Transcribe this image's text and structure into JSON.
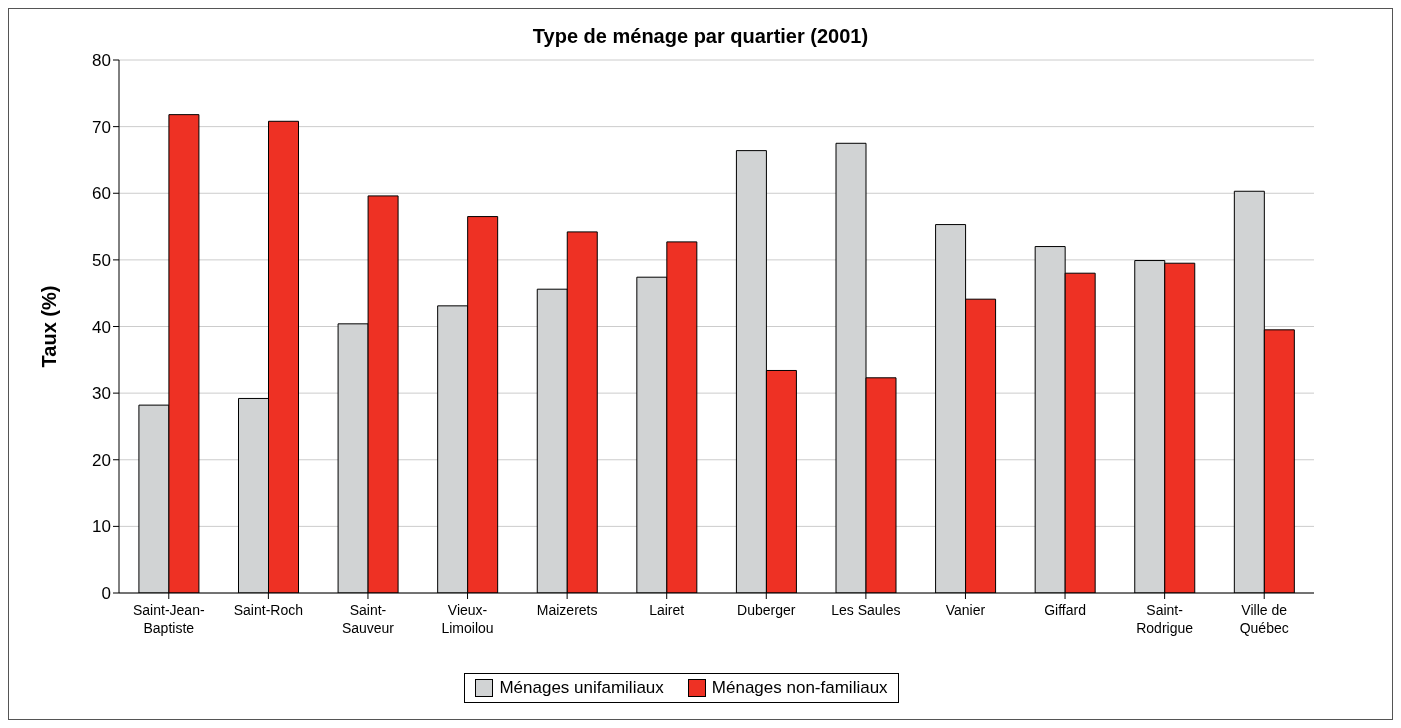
{
  "chart_data": {
    "type": "bar",
    "title": "Type de ménage par quartier (2001)",
    "ylabel": "Taux (%)",
    "categories": [
      "Saint-Jean-Baptiste",
      "Saint-Roch",
      "Saint-Sauveur",
      "Vieux-Limoilou",
      "Maizerets",
      "Lairet",
      "Duberger",
      "Les Saules",
      "Vanier",
      "Giffard",
      "Saint-Rodrigue",
      "Ville de Québec"
    ],
    "series": [
      {
        "name": "Ménages unifamiliaux",
        "color": "#d1d3d4",
        "values": [
          28.2,
          29.2,
          40.4,
          43.1,
          45.6,
          47.4,
          66.4,
          67.5,
          55.3,
          52.0,
          49.9,
          60.3
        ]
      },
      {
        "name": "Ménages non-familiaux",
        "color": "#ee3124",
        "values": [
          71.8,
          70.8,
          59.6,
          56.5,
          54.2,
          52.7,
          33.4,
          32.3,
          44.1,
          48.0,
          49.5,
          39.5
        ]
      }
    ],
    "ylim": [
      0,
      80
    ],
    "yticks": [
      0,
      10,
      20,
      30,
      40,
      50,
      60,
      70,
      80
    ],
    "grid": "y",
    "legend": "bottom"
  }
}
